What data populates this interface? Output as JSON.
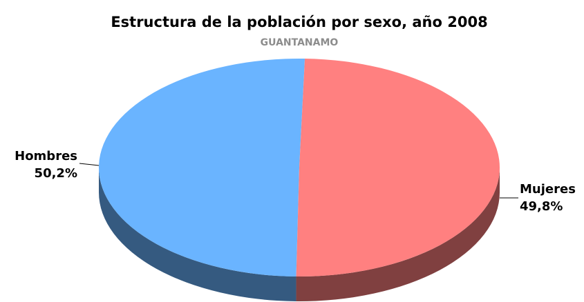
{
  "chart_data": {
    "type": "pie",
    "title": "Estructura de la población por sexo, año 2008",
    "subtitle": "GUANTANAMO",
    "categories": [
      "Hombres",
      "Mujeres"
    ],
    "values": [
      50.2,
      49.8
    ],
    "value_labels": [
      "50,2%",
      "49,8%"
    ],
    "colors": [
      "#6ab4ff",
      "#ff8080"
    ]
  }
}
